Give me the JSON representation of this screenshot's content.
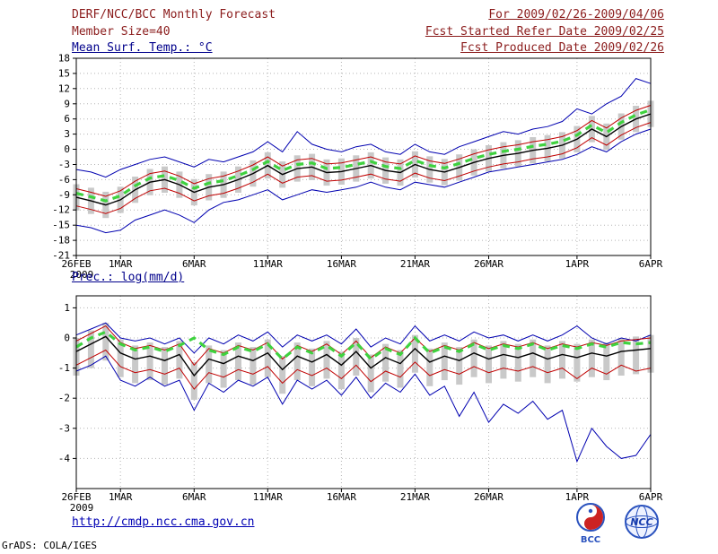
{
  "header": {
    "title": "DERF/NCC/BCC Monthly Forecast",
    "member_size": "Member Size=40",
    "for_range": "For 2009/02/26-2009/04/06",
    "fcst_started": "Fcst Started Refer Date 2009/02/25",
    "fcst_produced": "Fcst Produced Date 2009/02/26"
  },
  "footer": {
    "url": "http://cmdp.ncc.cma.gov.cn",
    "credit": "GrADS: COLA/IGES",
    "logos": [
      {
        "name": "bcc-logo",
        "label": "BCC"
      },
      {
        "name": "ncc-logo",
        "label": "NCC"
      }
    ]
  },
  "colors": {
    "header_text": "#8b1c1c",
    "chart_title": "#00008b",
    "link": "#0000b4",
    "ensemble_max_min": "#0000b0",
    "quartile": "#c00000",
    "ensemble_mean": "#000000",
    "reference_dashed": "#3fd23f",
    "spread_bars": "#c9c9c9"
  },
  "chart_data": [
    {
      "type": "line",
      "title": "Mean Surf. Temp.: °C",
      "ylabel": "",
      "ylim": [
        -21,
        18
      ],
      "yticks": [
        18,
        15,
        12,
        9,
        6,
        3,
        0,
        -3,
        -6,
        -9,
        -12,
        -15,
        -18,
        -21
      ],
      "x_count": 40,
      "x_start_date": "26FEB2009",
      "x_end_date": "6APR2009",
      "xticks": [
        {
          "index": 0,
          "label": "26FEB",
          "sub": "2009"
        },
        {
          "index": 3,
          "label": "1MAR"
        },
        {
          "index": 8,
          "label": "6MAR"
        },
        {
          "index": 13,
          "label": "11MAR"
        },
        {
          "index": 18,
          "label": "16MAR"
        },
        {
          "index": 23,
          "label": "21MAR"
        },
        {
          "index": 28,
          "label": "26MAR"
        },
        {
          "index": 34,
          "label": "1APR"
        },
        {
          "index": 39,
          "label": "6APR"
        }
      ],
      "bars": {
        "name": "ensemble-spread",
        "color": "#c9c9c9",
        "lo": [
          -12.1,
          -12.8,
          -13.6,
          -12.6,
          -10.6,
          -9.1,
          -8.6,
          -9.6,
          -11.1,
          -10.1,
          -9.6,
          -8.6,
          -7.4,
          -5.8,
          -7.6,
          -6.4,
          -6.1,
          -7.2,
          -7.0,
          -6.4,
          -5.8,
          -6.8,
          -7.2,
          -5.6,
          -6.6,
          -7.1,
          -6.2,
          -5.2,
          -4.4,
          -3.8,
          -3.4,
          -2.8,
          -2.4,
          -1.8,
          -0.6,
          1.4,
          -0.1,
          1.9,
          3.4,
          4.4
        ],
        "hi": [
          -6.9,
          -7.6,
          -8.4,
          -7.4,
          -5.4,
          -3.9,
          -3.4,
          -4.4,
          -5.9,
          -4.9,
          -4.4,
          -3.4,
          -2.2,
          -0.6,
          -2.4,
          -1.2,
          -0.9,
          -2.0,
          -1.8,
          -1.2,
          -0.6,
          -1.6,
          -2.0,
          -0.4,
          -1.4,
          -1.9,
          -1.0,
          0.0,
          0.8,
          1.4,
          1.8,
          2.4,
          2.8,
          3.4,
          4.6,
          6.6,
          5.1,
          7.1,
          8.6,
          9.6
        ]
      },
      "series": [
        {
          "name": "ensemble-max",
          "color": "#0000b0",
          "width": 1,
          "values": [
            -4.0,
            -4.5,
            -5.5,
            -4.0,
            -3.0,
            -2.0,
            -1.5,
            -2.5,
            -3.5,
            -2.0,
            -2.5,
            -1.5,
            -0.5,
            1.5,
            -0.5,
            3.5,
            1.0,
            0.0,
            -0.5,
            0.5,
            1.0,
            -0.5,
            -1.0,
            1.0,
            -0.5,
            -1.0,
            0.5,
            1.5,
            2.5,
            3.5,
            3.0,
            4.0,
            4.5,
            5.5,
            8.0,
            7.0,
            9.0,
            10.5,
            14.0,
            13.0
          ]
        },
        {
          "name": "ensemble-min",
          "color": "#0000b0",
          "width": 1,
          "values": [
            -15.0,
            -15.5,
            -16.5,
            -16.0,
            -14.0,
            -13.0,
            -12.0,
            -13.0,
            -14.5,
            -12.0,
            -10.5,
            -10.0,
            -9.0,
            -8.0,
            -10.0,
            -9.0,
            -8.0,
            -8.5,
            -8.0,
            -7.5,
            -6.5,
            -7.5,
            -8.0,
            -6.5,
            -7.0,
            -7.5,
            -6.5,
            -5.5,
            -4.5,
            -4.0,
            -3.5,
            -3.0,
            -2.5,
            -2.0,
            -1.0,
            0.5,
            -0.5,
            1.5,
            3.0,
            4.0
          ]
        },
        {
          "name": "upper-quartile",
          "color": "#c00000",
          "width": 1,
          "values": [
            -7.8,
            -8.5,
            -9.3,
            -8.2,
            -6.3,
            -4.8,
            -4.3,
            -5.3,
            -6.8,
            -5.8,
            -5.3,
            -4.3,
            -3.1,
            -1.5,
            -3.3,
            -2.1,
            -1.8,
            -2.9,
            -2.7,
            -2.1,
            -1.5,
            -2.5,
            -2.9,
            -1.3,
            -2.3,
            -2.8,
            -1.9,
            -0.9,
            -0.1,
            0.5,
            0.9,
            1.5,
            1.9,
            2.5,
            3.7,
            5.7,
            4.2,
            6.2,
            7.7,
            8.7
          ]
        },
        {
          "name": "lower-quartile",
          "color": "#c00000",
          "width": 1,
          "values": [
            -11.2,
            -11.9,
            -12.7,
            -11.7,
            -9.7,
            -8.2,
            -7.7,
            -8.7,
            -10.2,
            -9.2,
            -8.7,
            -7.7,
            -6.5,
            -4.9,
            -6.7,
            -5.5,
            -5.2,
            -6.3,
            -6.1,
            -5.5,
            -4.9,
            -5.9,
            -6.3,
            -4.7,
            -5.7,
            -6.2,
            -5.3,
            -4.3,
            -3.5,
            -2.9,
            -2.5,
            -1.9,
            -1.5,
            -0.9,
            0.3,
            2.3,
            0.8,
            2.8,
            4.3,
            5.3
          ]
        },
        {
          "name": "ensemble-mean",
          "color": "#000000",
          "width": 1.4,
          "values": [
            -9.5,
            -10.2,
            -11.0,
            -10.0,
            -8.0,
            -6.5,
            -6.0,
            -7.0,
            -8.5,
            -7.5,
            -7.0,
            -6.0,
            -4.8,
            -3.2,
            -5.0,
            -3.8,
            -3.5,
            -4.6,
            -4.4,
            -3.8,
            -3.2,
            -4.2,
            -4.6,
            -3.0,
            -4.0,
            -4.5,
            -3.6,
            -2.6,
            -1.8,
            -1.2,
            -0.8,
            -0.2,
            0.2,
            0.8,
            2.0,
            4.0,
            2.5,
            4.5,
            6.0,
            7.0
          ]
        },
        {
          "name": "reference-dashed",
          "color": "#3fd23f",
          "width": 3.2,
          "dash": "8 6",
          "values": [
            -8.7,
            -9.4,
            -10.2,
            -9.2,
            -7.2,
            -5.7,
            -5.2,
            -6.2,
            -7.7,
            -6.7,
            -6.2,
            -5.2,
            -4.0,
            -2.4,
            -4.2,
            -3.0,
            -2.7,
            -3.8,
            -3.6,
            -3.0,
            -2.4,
            -3.4,
            -3.8,
            -2.2,
            -3.2,
            -3.7,
            -2.8,
            -1.8,
            -1.0,
            -0.4,
            0.0,
            0.6,
            1.0,
            1.6,
            2.8,
            4.8,
            3.3,
            5.3,
            6.8,
            7.8
          ]
        }
      ]
    },
    {
      "type": "line",
      "title": "Prec.: log(mm/d)",
      "ylabel": "",
      "ylim": [
        -5,
        1.4
      ],
      "yticks": [
        1,
        0,
        -1,
        -2,
        -3,
        -4
      ],
      "x_count": 40,
      "x_start_date": "26FEB2009",
      "x_end_date": "6APR2009",
      "xticks": [
        {
          "index": 0,
          "label": "26FEB",
          "sub": "2009"
        },
        {
          "index": 3,
          "label": "1MAR"
        },
        {
          "index": 8,
          "label": "6MAR"
        },
        {
          "index": 13,
          "label": "11MAR"
        },
        {
          "index": 18,
          "label": "16MAR"
        },
        {
          "index": 23,
          "label": "21MAR"
        },
        {
          "index": 28,
          "label": "26MAR"
        },
        {
          "index": 34,
          "label": "1APR"
        },
        {
          "index": 39,
          "label": "6APR"
        }
      ],
      "bars": {
        "name": "ensemble-spread",
        "color": "#c9c9c9",
        "lo": [
          -1.25,
          -1.0,
          -0.75,
          -1.3,
          -1.5,
          -1.4,
          -1.55,
          -1.35,
          -2.05,
          -1.5,
          -1.65,
          -1.4,
          -1.55,
          -1.3,
          -1.85,
          -1.4,
          -1.6,
          -1.35,
          -1.7,
          -1.25,
          -1.8,
          -1.45,
          -1.65,
          -1.15,
          -1.6,
          -1.4,
          -1.55,
          -1.3,
          -1.5,
          -1.35,
          -1.45,
          -1.3,
          -1.5,
          -1.35,
          -1.45,
          -1.3,
          -1.4,
          -1.25,
          -1.2,
          -1.15
        ],
        "hi": [
          0.0,
          0.25,
          0.5,
          -0.05,
          -0.25,
          -0.15,
          -0.3,
          -0.1,
          -0.8,
          -0.25,
          -0.4,
          -0.15,
          -0.3,
          -0.05,
          -0.6,
          -0.15,
          -0.35,
          -0.1,
          -0.45,
          0.0,
          -0.55,
          -0.2,
          -0.4,
          0.1,
          -0.35,
          -0.15,
          -0.3,
          -0.05,
          -0.25,
          -0.1,
          -0.2,
          -0.05,
          -0.25,
          -0.1,
          -0.2,
          -0.05,
          -0.15,
          0.0,
          0.05,
          0.1
        ]
      },
      "series": [
        {
          "name": "ensemble-max",
          "color": "#0000b0",
          "width": 1,
          "values": [
            0.1,
            0.3,
            0.5,
            0.0,
            -0.1,
            0.0,
            -0.2,
            0.0,
            -0.5,
            0.0,
            -0.2,
            0.1,
            -0.1,
            0.2,
            -0.3,
            0.1,
            -0.1,
            0.1,
            -0.2,
            0.3,
            -0.3,
            0.0,
            -0.2,
            0.4,
            -0.1,
            0.1,
            -0.1,
            0.2,
            0.0,
            0.1,
            -0.1,
            0.1,
            -0.1,
            0.1,
            0.4,
            0.0,
            -0.2,
            0.0,
            -0.1,
            0.1
          ]
        },
        {
          "name": "ensemble-min",
          "color": "#0000b0",
          "width": 1,
          "values": [
            -1.1,
            -0.9,
            -0.6,
            -1.4,
            -1.6,
            -1.3,
            -1.6,
            -1.4,
            -2.4,
            -1.5,
            -1.8,
            -1.4,
            -1.6,
            -1.3,
            -2.2,
            -1.4,
            -1.7,
            -1.4,
            -1.9,
            -1.3,
            -2.0,
            -1.5,
            -1.8,
            -1.2,
            -1.9,
            -1.6,
            -2.6,
            -1.8,
            -2.8,
            -2.2,
            -2.5,
            -2.1,
            -2.7,
            -2.4,
            -4.1,
            -3.0,
            -3.6,
            -4.0,
            -3.9,
            -3.2
          ]
        },
        {
          "name": "upper-quartile",
          "color": "#c00000",
          "width": 1,
          "values": [
            -0.1,
            0.15,
            0.4,
            -0.15,
            -0.35,
            -0.25,
            -0.4,
            -0.2,
            -0.9,
            -0.35,
            -0.5,
            -0.25,
            -0.4,
            -0.15,
            -0.7,
            -0.25,
            -0.45,
            -0.2,
            -0.55,
            -0.1,
            -0.65,
            -0.3,
            -0.5,
            0.0,
            -0.45,
            -0.25,
            -0.4,
            -0.15,
            -0.35,
            -0.2,
            -0.3,
            -0.15,
            -0.35,
            -0.2,
            -0.3,
            -0.15,
            -0.25,
            -0.1,
            -0.05,
            0.0
          ]
        },
        {
          "name": "lower-quartile",
          "color": "#c00000",
          "width": 1,
          "values": [
            -0.9,
            -0.65,
            -0.4,
            -0.95,
            -1.15,
            -1.05,
            -1.2,
            -1.0,
            -1.7,
            -1.15,
            -1.3,
            -1.05,
            -1.2,
            -0.95,
            -1.5,
            -1.05,
            -1.25,
            -1.0,
            -1.35,
            -0.9,
            -1.45,
            -1.1,
            -1.3,
            -0.8,
            -1.25,
            -1.05,
            -1.2,
            -0.95,
            -1.15,
            -1.0,
            -1.1,
            -0.95,
            -1.15,
            -1.0,
            -1.35,
            -1.0,
            -1.2,
            -0.9,
            -1.1,
            -1.0
          ]
        },
        {
          "name": "ensemble-mean",
          "color": "#000000",
          "width": 1.4,
          "values": [
            -0.45,
            -0.2,
            0.05,
            -0.5,
            -0.7,
            -0.6,
            -0.75,
            -0.55,
            -1.25,
            -0.7,
            -0.85,
            -0.6,
            -0.75,
            -0.5,
            -1.05,
            -0.6,
            -0.8,
            -0.55,
            -0.9,
            -0.45,
            -1.0,
            -0.65,
            -0.85,
            -0.35,
            -0.8,
            -0.6,
            -0.75,
            -0.5,
            -0.7,
            -0.55,
            -0.65,
            -0.5,
            -0.7,
            -0.55,
            -0.65,
            -0.5,
            -0.6,
            -0.45,
            -0.4,
            -0.35
          ]
        },
        {
          "name": "reference-dashed",
          "color": "#3fd23f",
          "width": 3.2,
          "dash": "8 6",
          "values": [
            -0.3,
            0.0,
            0.2,
            -0.2,
            -0.4,
            -0.3,
            -0.45,
            -0.25,
            0.0,
            -0.4,
            -0.55,
            -0.3,
            -0.45,
            -0.2,
            -0.7,
            -0.3,
            -0.5,
            -0.25,
            -0.6,
            -0.15,
            -0.7,
            -0.35,
            -0.55,
            0.0,
            -0.5,
            -0.3,
            -0.45,
            -0.2,
            -0.4,
            -0.25,
            -0.35,
            -0.2,
            -0.4,
            -0.25,
            -0.35,
            -0.2,
            -0.3,
            -0.15,
            -0.2,
            -0.15
          ]
        }
      ]
    }
  ]
}
